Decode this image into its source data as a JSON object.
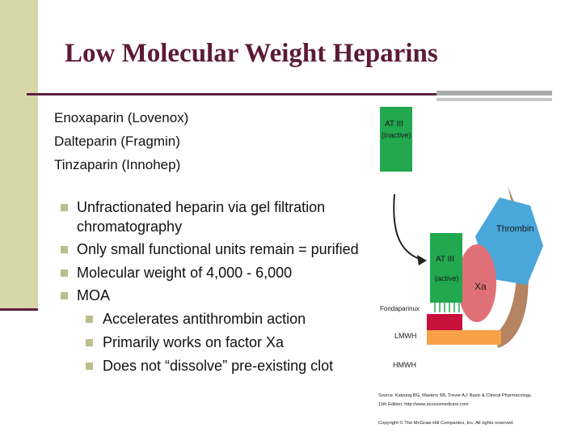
{
  "slide": {
    "title": "Low Molecular Weight Heparins",
    "drugs": [
      "Enoxaparin (Lovenox)",
      "Dalteparin (Fragmin)",
      "Tinzaparin (Innohep)"
    ],
    "bullets": [
      "Unfractionated heparin via gel filtration chromatography",
      "Only small functional units remain = purified",
      "Molecular weight of 4,000 - 6,000",
      "MOA"
    ],
    "sub_bullets": [
      "Accelerates antithrombin action",
      "Primarily works on factor Xa",
      "Does not “dissolve” pre-existing clot"
    ]
  },
  "diagram": {
    "at3_inactive": [
      "AT III",
      "(inactive)"
    ],
    "at3_active": [
      "AT III",
      "(active)"
    ],
    "thrombin_label": "Thrombin",
    "xa_label": "Xa",
    "fondaparinux_label": "Fondaparinux",
    "lmwh_label": "LMWH",
    "hmwh_label": "HMWH",
    "source_line1": "Source: Katzung BG, Masters SB, Trevor AJ: Basic & Clinical Pharmacology,",
    "source_line2": "11th Edition: http://www.accessmedicine.com",
    "copyright": "Copyright © The McGraw-Hill Companies, Inc. All rights reserved.",
    "colors": {
      "green": "#22a84e",
      "blue": "#4aa7d9",
      "pink": "#e07078",
      "crimson": "#c8103c",
      "orange": "#f7a046",
      "brown": "#b58462"
    }
  }
}
